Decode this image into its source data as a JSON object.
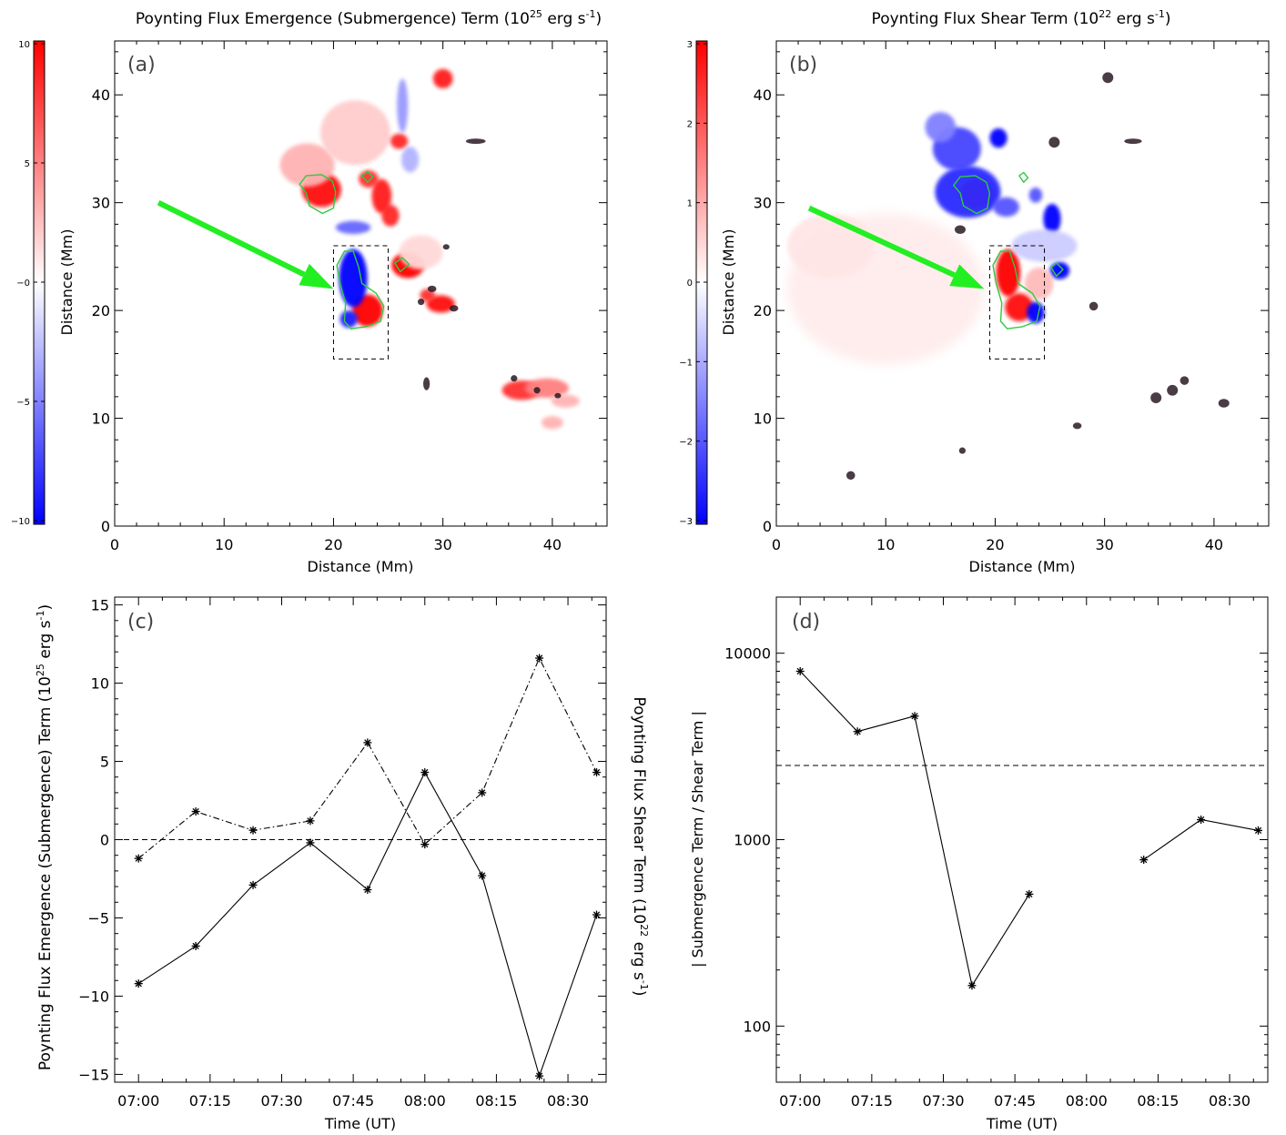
{
  "chart_data": [
    {
      "panel": "a",
      "type": "heatmap",
      "panel_label": "(a)",
      "title": "Poynting Flux Emergence (Submergence) Term (10",
      "title_sup": "25",
      "title_unit": " erg s",
      "title_unit_sup": "-1",
      "title_close": ")",
      "xlabel": "Distance (Mm)",
      "ylabel": "Distance (Mm)",
      "xlim": [
        0,
        45
      ],
      "ylim": [
        0,
        45
      ],
      "x_ticks": [
        "0",
        "10",
        "20",
        "30",
        "40"
      ],
      "y_ticks": [
        "0",
        "10",
        "20",
        "30",
        "40"
      ],
      "colorbar": {
        "range": [
          -10,
          10
        ],
        "ticks": [
          "10",
          "5",
          "−0",
          "−5",
          "−10"
        ],
        "colors": [
          "#0000ff",
          "#ffffff",
          "#ff0000"
        ]
      },
      "box": {
        "x": [
          20,
          25
        ],
        "y": [
          15.5,
          26
        ]
      },
      "arrow": {
        "from": [
          4,
          30
        ],
        "to": [
          20,
          22
        ]
      },
      "contours": [
        [
          [
            16.9,
            31.7
          ],
          [
            17.5,
            32.5
          ],
          [
            18.9,
            32.6
          ],
          [
            19.9,
            32.0
          ],
          [
            20.2,
            31.0
          ],
          [
            20.0,
            29.5
          ],
          [
            19.0,
            29.0
          ],
          [
            17.8,
            29.7
          ],
          [
            17.5,
            30.9
          ]
        ],
        [
          [
            22.6,
            32.5
          ],
          [
            23.1,
            32.9
          ],
          [
            23.6,
            32.4
          ],
          [
            23.1,
            31.9
          ]
        ],
        [
          [
            21.0,
            25.5
          ],
          [
            21.8,
            25.5
          ],
          [
            22.3,
            24.0
          ],
          [
            22.6,
            22.5
          ],
          [
            23.9,
            21.6
          ],
          [
            24.6,
            20.4
          ],
          [
            24.3,
            19.0
          ],
          [
            23.0,
            18.5
          ],
          [
            21.6,
            18.3
          ],
          [
            21.0,
            19.0
          ],
          [
            21.1,
            20.7
          ],
          [
            20.6,
            22.5
          ],
          [
            20.3,
            24.2
          ]
        ],
        [
          [
            25.6,
            24.4
          ],
          [
            26.3,
            24.9
          ],
          [
            26.9,
            24.3
          ],
          [
            26.1,
            23.6
          ]
        ]
      ],
      "blobs": [
        {
          "x": 18.9,
          "y": 31.2,
          "rx": 1.8,
          "ry": 1.6,
          "value": 9.5
        },
        {
          "x": 17.6,
          "y": 33.5,
          "rx": 2.5,
          "ry": 2.0,
          "value": 3.0
        },
        {
          "x": 22.0,
          "y": 36.5,
          "rx": 3.2,
          "ry": 3.0,
          "value": 2.0
        },
        {
          "x": 23.2,
          "y": 32.2,
          "rx": 0.9,
          "ry": 0.8,
          "value": 8.0
        },
        {
          "x": 24.4,
          "y": 30.6,
          "rx": 0.9,
          "ry": 1.6,
          "value": 9.0
        },
        {
          "x": 25.2,
          "y": 28.8,
          "rx": 0.8,
          "ry": 1.0,
          "value": 8.5
        },
        {
          "x": 26.0,
          "y": 35.7,
          "rx": 0.8,
          "ry": 0.7,
          "value": 8.5
        },
        {
          "x": 26.8,
          "y": 24.2,
          "rx": 1.5,
          "ry": 1.2,
          "value": 10.0
        },
        {
          "x": 30.0,
          "y": 41.5,
          "rx": 0.9,
          "ry": 0.9,
          "value": 9.0
        },
        {
          "x": 29.8,
          "y": 20.6,
          "rx": 1.3,
          "ry": 0.8,
          "value": 9.5
        },
        {
          "x": 28.6,
          "y": 21.4,
          "rx": 0.7,
          "ry": 0.6,
          "value": 8.0
        },
        {
          "x": 23.1,
          "y": 20.0,
          "rx": 1.4,
          "ry": 1.5,
          "value": 10.0
        },
        {
          "x": 21.8,
          "y": 23.0,
          "rx": 1.3,
          "ry": 2.7,
          "value": -10.0
        },
        {
          "x": 21.4,
          "y": 19.2,
          "rx": 0.8,
          "ry": 0.8,
          "value": -9.0
        },
        {
          "x": 21.8,
          "y": 27.7,
          "rx": 1.6,
          "ry": 0.6,
          "value": -6.0
        },
        {
          "x": 26.3,
          "y": 39.0,
          "rx": 0.5,
          "ry": 2.5,
          "value": -4.0
        },
        {
          "x": 27.0,
          "y": 34.0,
          "rx": 0.8,
          "ry": 1.2,
          "value": -3.0
        },
        {
          "x": 37.2,
          "y": 12.6,
          "rx": 1.8,
          "ry": 0.9,
          "value": 8.0
        },
        {
          "x": 39.5,
          "y": 12.8,
          "rx": 2.0,
          "ry": 0.9,
          "value": 5.0
        },
        {
          "x": 41.2,
          "y": 11.6,
          "rx": 1.3,
          "ry": 0.6,
          "value": 3.0
        },
        {
          "x": 40.0,
          "y": 9.6,
          "rx": 1.0,
          "ry": 0.6,
          "value": 3.0
        },
        {
          "x": 28.0,
          "y": 25.4,
          "rx": 2.0,
          "ry": 1.6,
          "value": 1.5
        }
      ],
      "dark_marks": [
        {
          "x": 33.0,
          "y": 35.7,
          "rx": 0.9,
          "ry": 0.25
        },
        {
          "x": 30.3,
          "y": 25.9,
          "rx": 0.3,
          "ry": 0.25
        },
        {
          "x": 29.0,
          "y": 22.0,
          "rx": 0.4,
          "ry": 0.3
        },
        {
          "x": 31.0,
          "y": 20.2,
          "rx": 0.4,
          "ry": 0.3
        },
        {
          "x": 28.0,
          "y": 20.8,
          "rx": 0.3,
          "ry": 0.3
        },
        {
          "x": 36.5,
          "y": 13.7,
          "rx": 0.3,
          "ry": 0.3
        },
        {
          "x": 38.6,
          "y": 12.6,
          "rx": 0.3,
          "ry": 0.3
        },
        {
          "x": 40.5,
          "y": 12.1,
          "rx": 0.3,
          "ry": 0.25
        },
        {
          "x": 28.5,
          "y": 13.2,
          "rx": 0.3,
          "ry": 0.6
        }
      ]
    },
    {
      "panel": "b",
      "type": "heatmap",
      "panel_label": "(b)",
      "title": "Poynting Flux Shear Term (10",
      "title_sup": "22",
      "title_unit": " erg s",
      "title_unit_sup": "-1",
      "title_close": ")",
      "xlabel": "Distance (Mm)",
      "ylabel": "Distance (Mm)",
      "xlim": [
        0,
        45
      ],
      "ylim": [
        0,
        45
      ],
      "x_ticks": [
        "0",
        "10",
        "20",
        "30",
        "40"
      ],
      "y_ticks": [
        "0",
        "10",
        "20",
        "30",
        "40"
      ],
      "colorbar": {
        "range": [
          -3,
          3
        ],
        "ticks": [
          "3",
          "2",
          "1",
          "0",
          "−1",
          "−2",
          "−3"
        ],
        "colors": [
          "#0000ff",
          "#ffffff",
          "#ff0000"
        ]
      },
      "box": {
        "x": [
          19.5,
          24.5
        ],
        "y": [
          15.5,
          26
        ]
      },
      "arrow": {
        "from": [
          3,
          29.5
        ],
        "to": [
          19,
          22
        ]
      },
      "contours": [
        [
          [
            16.2,
            31.6
          ],
          [
            16.8,
            32.4
          ],
          [
            18.2,
            32.5
          ],
          [
            19.2,
            31.9
          ],
          [
            19.5,
            30.9
          ],
          [
            19.3,
            29.5
          ],
          [
            18.3,
            29.0
          ],
          [
            17.1,
            29.7
          ],
          [
            16.8,
            30.9
          ]
        ],
        [
          [
            22.2,
            32.5
          ],
          [
            22.6,
            32.8
          ],
          [
            23.0,
            32.3
          ],
          [
            22.6,
            31.9
          ]
        ],
        [
          [
            20.5,
            25.5
          ],
          [
            21.3,
            25.5
          ],
          [
            21.8,
            24.0
          ],
          [
            22.1,
            22.5
          ],
          [
            23.4,
            21.6
          ],
          [
            24.1,
            20.4
          ],
          [
            23.8,
            19.0
          ],
          [
            22.5,
            18.5
          ],
          [
            21.1,
            18.3
          ],
          [
            20.5,
            19.0
          ],
          [
            20.6,
            20.7
          ],
          [
            20.1,
            22.5
          ],
          [
            19.8,
            24.2
          ]
        ],
        [
          [
            25.1,
            24.0
          ],
          [
            25.6,
            24.4
          ],
          [
            26.2,
            23.8
          ],
          [
            25.6,
            23.2
          ]
        ]
      ],
      "blobs": [
        {
          "x": 18.3,
          "y": 30.8,
          "rx": 1.6,
          "ry": 1.4,
          "value": 2.5
        },
        {
          "x": 17.5,
          "y": 31.0,
          "rx": 3.0,
          "ry": 2.4,
          "value": -2.5
        },
        {
          "x": 16.5,
          "y": 35.0,
          "rx": 2.2,
          "ry": 2.0,
          "value": -2.2
        },
        {
          "x": 15.0,
          "y": 37.0,
          "rx": 1.4,
          "ry": 1.4,
          "value": -1.5
        },
        {
          "x": 20.3,
          "y": 36.0,
          "rx": 0.8,
          "ry": 0.9,
          "value": -3.0
        },
        {
          "x": 21.0,
          "y": 29.6,
          "rx": 1.2,
          "ry": 0.9,
          "value": -2.0
        },
        {
          "x": 23.7,
          "y": 30.7,
          "rx": 0.6,
          "ry": 0.7,
          "value": -2.0
        },
        {
          "x": 25.2,
          "y": 28.5,
          "rx": 0.8,
          "ry": 1.4,
          "value": -3.0
        },
        {
          "x": 25.9,
          "y": 23.7,
          "rx": 0.9,
          "ry": 0.8,
          "value": -3.0
        },
        {
          "x": 21.2,
          "y": 23.5,
          "rx": 1.1,
          "ry": 2.2,
          "value": 3.0
        },
        {
          "x": 22.2,
          "y": 20.3,
          "rx": 1.3,
          "ry": 1.3,
          "value": 2.8
        },
        {
          "x": 23.7,
          "y": 19.8,
          "rx": 0.8,
          "ry": 1.0,
          "value": -3.0
        },
        {
          "x": 24.0,
          "y": 22.5,
          "rx": 1.3,
          "ry": 1.5,
          "value": 0.8
        },
        {
          "x": 10.0,
          "y": 22.0,
          "rx": 9.0,
          "ry": 7.0,
          "value": 0.35
        },
        {
          "x": 5.0,
          "y": 26.0,
          "rx": 4.0,
          "ry": 3.0,
          "value": 0.3
        },
        {
          "x": 24.5,
          "y": 26.0,
          "rx": 3.0,
          "ry": 1.5,
          "value": -0.6
        }
      ],
      "dark_marks": [
        {
          "x": 32.6,
          "y": 35.7,
          "rx": 0.8,
          "ry": 0.25
        },
        {
          "x": 25.4,
          "y": 35.6,
          "rx": 0.5,
          "ry": 0.5
        },
        {
          "x": 30.3,
          "y": 41.6,
          "rx": 0.5,
          "ry": 0.5
        },
        {
          "x": 29.0,
          "y": 20.4,
          "rx": 0.4,
          "ry": 0.4
        },
        {
          "x": 34.7,
          "y": 11.9,
          "rx": 0.5,
          "ry": 0.5
        },
        {
          "x": 36.2,
          "y": 12.6,
          "rx": 0.5,
          "ry": 0.5
        },
        {
          "x": 37.3,
          "y": 13.5,
          "rx": 0.4,
          "ry": 0.4
        },
        {
          "x": 40.9,
          "y": 11.4,
          "rx": 0.5,
          "ry": 0.4
        },
        {
          "x": 6.8,
          "y": 4.7,
          "rx": 0.4,
          "ry": 0.4
        },
        {
          "x": 17.0,
          "y": 7.0,
          "rx": 0.3,
          "ry": 0.3
        },
        {
          "x": 27.5,
          "y": 9.3,
          "rx": 0.4,
          "ry": 0.3
        },
        {
          "x": 16.8,
          "y": 27.5,
          "rx": 0.5,
          "ry": 0.4
        }
      ]
    },
    {
      "panel": "c",
      "type": "line",
      "panel_label": "(c)",
      "xlabel": "Time (UT)",
      "ylabel_left": "Poynting Flux Emergence (Submergence) Term (10",
      "ylabel_left_sup": "25",
      "ylabel_left_unit": " erg s",
      "ylabel_left_unit_sup": "-1",
      "ylabel_left_close": ")",
      "ylabel_right": "Poynting Flux Shear Term (10",
      "ylabel_right_sup": "22",
      "ylabel_right_unit": " erg s",
      "ylabel_right_unit_sup": "-1",
      "ylabel_right_close": ")",
      "x_ticks": [
        "07:00",
        "07:15",
        "07:30",
        "07:45",
        "08:00",
        "08:15",
        "08:30"
      ],
      "x_tick_minutes": [
        420,
        435,
        450,
        465,
        480,
        495,
        510
      ],
      "xlim_minutes": [
        415,
        518
      ],
      "ylim": [
        -15.5,
        15.5
      ],
      "y_ticks": [
        "15",
        "10",
        "5",
        "0",
        "−5",
        "−10",
        "−15"
      ],
      "y_tick_values": [
        15,
        10,
        5,
        0,
        -5,
        -10,
        -15
      ],
      "reference_y": 0,
      "series": [
        {
          "style": "solid",
          "x_minutes": [
            420,
            432,
            444,
            456,
            468,
            480,
            492,
            504,
            516
          ],
          "values": [
            -9.2,
            -6.8,
            -2.9,
            -0.2,
            -3.2,
            4.3,
            -2.3,
            -15.1,
            -4.8
          ]
        },
        {
          "style": "dashdot",
          "x_minutes": [
            420,
            432,
            444,
            456,
            468,
            480,
            492,
            504,
            516
          ],
          "values": [
            -1.2,
            1.8,
            0.6,
            1.2,
            6.2,
            -0.3,
            3.0,
            11.6,
            4.3
          ]
        }
      ]
    },
    {
      "panel": "d",
      "type": "line",
      "panel_label": "(d)",
      "xlabel": "Time (UT)",
      "ylabel": "| Submergence Term / Shear Term |",
      "log_y": true,
      "x_ticks": [
        "07:00",
        "07:15",
        "07:30",
        "07:45",
        "08:00",
        "08:15",
        "08:30"
      ],
      "x_tick_minutes": [
        420,
        435,
        450,
        465,
        480,
        495,
        510
      ],
      "xlim_minutes": [
        415,
        518
      ],
      "ylim": [
        50,
        20000
      ],
      "y_ticks": [
        "10000",
        "1000",
        "100"
      ],
      "y_tick_values": [
        10000,
        1000,
        100
      ],
      "reference_y": 2500,
      "segments": [
        {
          "x_minutes": [
            420,
            432,
            444,
            456,
            468
          ],
          "values": [
            8000,
            3800,
            4600,
            165,
            510
          ]
        },
        {
          "x_minutes": [
            492,
            504,
            516
          ],
          "values": [
            780,
            1280,
            1120
          ]
        }
      ]
    }
  ]
}
